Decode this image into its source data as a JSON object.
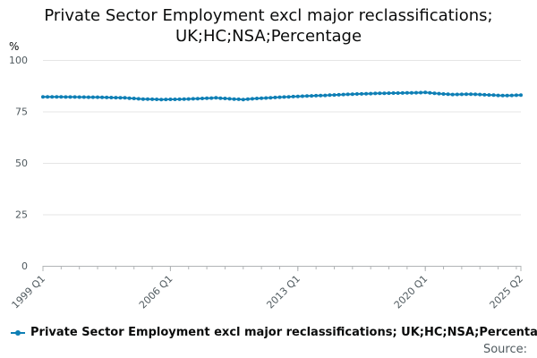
{
  "chart_data": {
    "type": "line",
    "title_line1": "Private Sector Employment excl major reclassifications;",
    "title_line2": "UK;HC;NSA;Percentage",
    "ylabel": "%",
    "ylim": [
      0,
      100
    ],
    "yticks": [
      0,
      25,
      50,
      75,
      100
    ],
    "xticks": [
      "1999 Q1",
      "2006 Q1",
      "2013 Q1",
      "2020 Q1",
      "2025 Q2"
    ],
    "grid": true,
    "legend_position": "bottom",
    "series": [
      {
        "name": "Private Sector Employment excl major reclassifications; UK;HC;NSA;Percentage",
        "color": "#0e7fb5",
        "anchors": [
          [
            "1999 Q1",
            82.1
          ],
          [
            "2000 Q3",
            82.0
          ],
          [
            "2002 Q1",
            81.9
          ],
          [
            "2003 Q3",
            81.6
          ],
          [
            "2004 Q3",
            81.0
          ],
          [
            "2005 Q3",
            80.8
          ],
          [
            "2006 Q3",
            80.9
          ],
          [
            "2007 Q3",
            81.2
          ],
          [
            "2008 Q3",
            81.6
          ],
          [
            "2009 Q3",
            81.0
          ],
          [
            "2010 Q1",
            80.8
          ],
          [
            "2010 Q4",
            81.3
          ],
          [
            "2012 Q1",
            81.9
          ],
          [
            "2013 Q1",
            82.3
          ],
          [
            "2014 Q3",
            82.8
          ],
          [
            "2016 Q1",
            83.4
          ],
          [
            "2017 Q3",
            83.8
          ],
          [
            "2019 Q1",
            84.0
          ],
          [
            "2020 Q1",
            84.2
          ],
          [
            "2020 Q3",
            83.8
          ],
          [
            "2021 Q3",
            83.2
          ],
          [
            "2022 Q3",
            83.4
          ],
          [
            "2023 Q3",
            83.0
          ],
          [
            "2024 Q2",
            82.7
          ],
          [
            "2025 Q2",
            82.9
          ]
        ]
      }
    ]
  },
  "footer": {
    "source": "Source:"
  }
}
